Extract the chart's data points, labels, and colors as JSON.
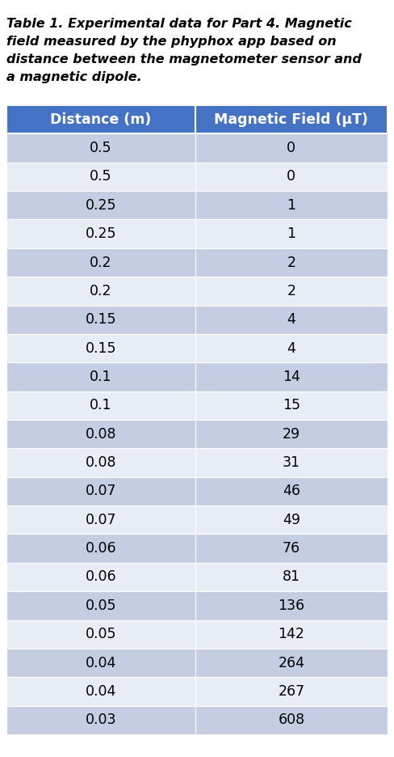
{
  "caption_lines": [
    "Table 1. Experimental data for Part 4. Magnetic",
    "field measured by the phyphox app based on",
    "distance between the magnetometer sensor and",
    "a magnetic dipole."
  ],
  "col1_header": "Distance (m)",
  "col2_header": "Magnetic Field (μT)",
  "rows": [
    [
      "0.5",
      "0"
    ],
    [
      "0.5",
      "0"
    ],
    [
      "0.25",
      "1"
    ],
    [
      "0.25",
      "1"
    ],
    [
      "0.2",
      "2"
    ],
    [
      "0.2",
      "2"
    ],
    [
      "0.15",
      "4"
    ],
    [
      "0.15",
      "4"
    ],
    [
      "0.1",
      "14"
    ],
    [
      "0.1",
      "15"
    ],
    [
      "0.08",
      "29"
    ],
    [
      "0.08",
      "31"
    ],
    [
      "0.07",
      "46"
    ],
    [
      "0.07",
      "49"
    ],
    [
      "0.06",
      "76"
    ],
    [
      "0.06",
      "81"
    ],
    [
      "0.05",
      "136"
    ],
    [
      "0.05",
      "142"
    ],
    [
      "0.04",
      "264"
    ],
    [
      "0.04",
      "267"
    ],
    [
      "0.03",
      "608"
    ]
  ],
  "header_bg": "#4472C4",
  "header_fg": "#FFFFFF",
  "row_color_odd": "#C5CDE3",
  "row_color_even": "#E8ECF5",
  "grid_color": "#FFFFFF",
  "caption_fontsize": 11.5,
  "header_fontsize": 12.5,
  "data_fontsize": 12.5,
  "fig_width": 4.88,
  "fig_height": 9.36,
  "bg_color": "#FFFFFF",
  "dpi": 100
}
